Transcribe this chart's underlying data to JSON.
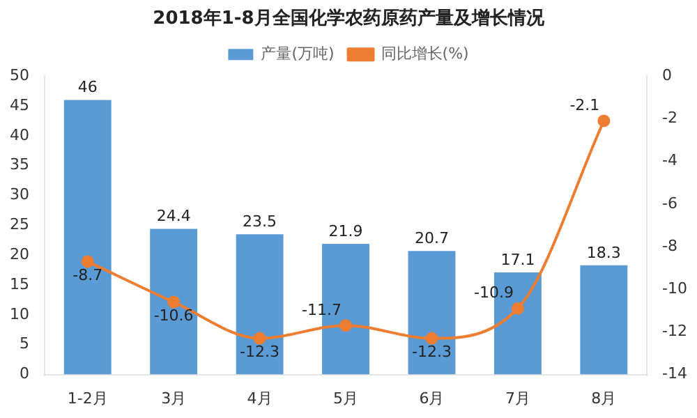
{
  "chart_data": {
    "type": "bar",
    "title": "2018年1-8月全国化学农药原药产量及增长情况",
    "categories": [
      "1-2月",
      "3月",
      "4月",
      "5月",
      "6月",
      "7月",
      "8月"
    ],
    "series": [
      {
        "name": "产量(万吨)",
        "color": "#5b9bd5",
        "values": [
          46,
          24.4,
          23.5,
          21.9,
          20.7,
          17.1,
          18.3
        ]
      },
      {
        "name": "同比增长(%)",
        "type": "line",
        "axis": "y2",
        "color": "#ed7d31",
        "marker": "circle",
        "values": [
          -8.7,
          -10.6,
          -12.3,
          -11.7,
          -12.3,
          -10.9,
          -2.1
        ]
      }
    ],
    "ylim": [
      0,
      50
    ],
    "yticks": [
      0,
      5,
      10,
      15,
      20,
      25,
      30,
      35,
      40,
      45,
      50
    ],
    "y2lim": [
      -14,
      0
    ],
    "y2ticks": [
      -14,
      -12,
      -10,
      -8,
      -6,
      -4,
      -2,
      0
    ],
    "data_labels": true,
    "legend": "top",
    "grid": false
  }
}
